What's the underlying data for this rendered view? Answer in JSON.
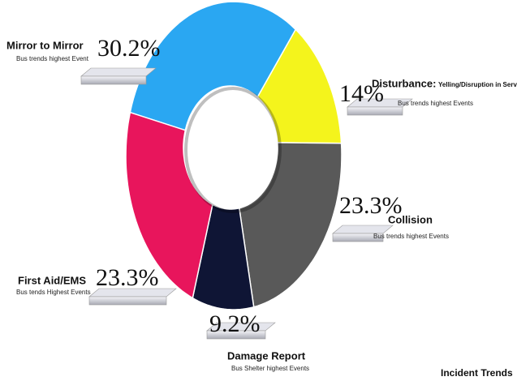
{
  "chart_data": {
    "type": "donut",
    "title": "Incident Trends",
    "categories": [
      "Mirror to Mirror",
      "Disturbance:",
      "Collision",
      "Damage Report",
      "First Aid/EMS"
    ],
    "details": [
      null,
      "Yelling/Disruption in Service",
      null,
      null,
      null
    ],
    "subtitles": [
      "Bus trends highest Event",
      "Bus trends highest Events",
      "Bus trends highest Events",
      "Bus Shelter highest Events",
      "Bus tends Highest Events"
    ],
    "values": [
      30.2,
      14,
      23.3,
      9.2,
      23.3
    ],
    "value_labels": [
      "30.2%",
      "14%",
      "23.3%",
      "9.2%",
      "23.3%"
    ],
    "colors": [
      "#2aa7f2",
      "#f4f41c",
      "#595959",
      "#0f1535",
      "#e8155c"
    ]
  }
}
